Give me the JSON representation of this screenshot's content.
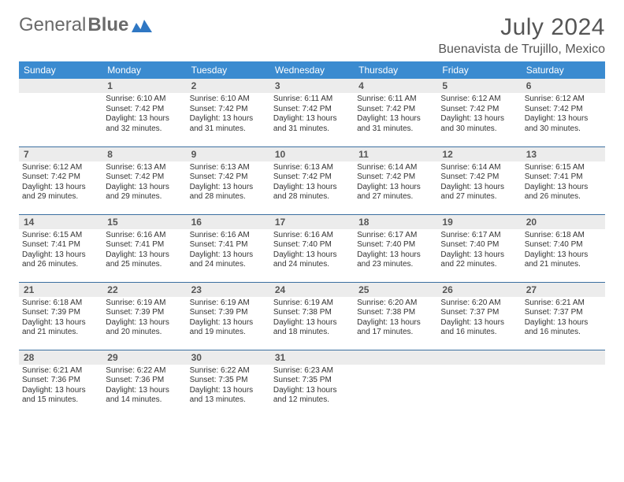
{
  "brand": {
    "word1": "General",
    "word2": "Blue"
  },
  "title": "July 2024",
  "location": "Buenavista de Trujillo, Mexico",
  "colors": {
    "header_bg": "#3b8bd0",
    "header_text": "#ffffff",
    "daynum_bg": "#ececec",
    "rule": "#3b6fa0",
    "text": "#333333",
    "title_text": "#555555",
    "logo_text": "#6a6a6a",
    "logo_mark": "#2f77c3"
  },
  "dow": [
    "Sunday",
    "Monday",
    "Tuesday",
    "Wednesday",
    "Thursday",
    "Friday",
    "Saturday"
  ],
  "weeks": [
    [
      null,
      {
        "n": "1",
        "sr": "6:10 AM",
        "ss": "7:42 PM",
        "dl": "13 hours and 32 minutes."
      },
      {
        "n": "2",
        "sr": "6:10 AM",
        "ss": "7:42 PM",
        "dl": "13 hours and 31 minutes."
      },
      {
        "n": "3",
        "sr": "6:11 AM",
        "ss": "7:42 PM",
        "dl": "13 hours and 31 minutes."
      },
      {
        "n": "4",
        "sr": "6:11 AM",
        "ss": "7:42 PM",
        "dl": "13 hours and 31 minutes."
      },
      {
        "n": "5",
        "sr": "6:12 AM",
        "ss": "7:42 PM",
        "dl": "13 hours and 30 minutes."
      },
      {
        "n": "6",
        "sr": "6:12 AM",
        "ss": "7:42 PM",
        "dl": "13 hours and 30 minutes."
      }
    ],
    [
      {
        "n": "7",
        "sr": "6:12 AM",
        "ss": "7:42 PM",
        "dl": "13 hours and 29 minutes."
      },
      {
        "n": "8",
        "sr": "6:13 AM",
        "ss": "7:42 PM",
        "dl": "13 hours and 29 minutes."
      },
      {
        "n": "9",
        "sr": "6:13 AM",
        "ss": "7:42 PM",
        "dl": "13 hours and 28 minutes."
      },
      {
        "n": "10",
        "sr": "6:13 AM",
        "ss": "7:42 PM",
        "dl": "13 hours and 28 minutes."
      },
      {
        "n": "11",
        "sr": "6:14 AM",
        "ss": "7:42 PM",
        "dl": "13 hours and 27 minutes."
      },
      {
        "n": "12",
        "sr": "6:14 AM",
        "ss": "7:42 PM",
        "dl": "13 hours and 27 minutes."
      },
      {
        "n": "13",
        "sr": "6:15 AM",
        "ss": "7:41 PM",
        "dl": "13 hours and 26 minutes."
      }
    ],
    [
      {
        "n": "14",
        "sr": "6:15 AM",
        "ss": "7:41 PM",
        "dl": "13 hours and 26 minutes."
      },
      {
        "n": "15",
        "sr": "6:16 AM",
        "ss": "7:41 PM",
        "dl": "13 hours and 25 minutes."
      },
      {
        "n": "16",
        "sr": "6:16 AM",
        "ss": "7:41 PM",
        "dl": "13 hours and 24 minutes."
      },
      {
        "n": "17",
        "sr": "6:16 AM",
        "ss": "7:40 PM",
        "dl": "13 hours and 24 minutes."
      },
      {
        "n": "18",
        "sr": "6:17 AM",
        "ss": "7:40 PM",
        "dl": "13 hours and 23 minutes."
      },
      {
        "n": "19",
        "sr": "6:17 AM",
        "ss": "7:40 PM",
        "dl": "13 hours and 22 minutes."
      },
      {
        "n": "20",
        "sr": "6:18 AM",
        "ss": "7:40 PM",
        "dl": "13 hours and 21 minutes."
      }
    ],
    [
      {
        "n": "21",
        "sr": "6:18 AM",
        "ss": "7:39 PM",
        "dl": "13 hours and 21 minutes."
      },
      {
        "n": "22",
        "sr": "6:19 AM",
        "ss": "7:39 PM",
        "dl": "13 hours and 20 minutes."
      },
      {
        "n": "23",
        "sr": "6:19 AM",
        "ss": "7:39 PM",
        "dl": "13 hours and 19 minutes."
      },
      {
        "n": "24",
        "sr": "6:19 AM",
        "ss": "7:38 PM",
        "dl": "13 hours and 18 minutes."
      },
      {
        "n": "25",
        "sr": "6:20 AM",
        "ss": "7:38 PM",
        "dl": "13 hours and 17 minutes."
      },
      {
        "n": "26",
        "sr": "6:20 AM",
        "ss": "7:37 PM",
        "dl": "13 hours and 16 minutes."
      },
      {
        "n": "27",
        "sr": "6:21 AM",
        "ss": "7:37 PM",
        "dl": "13 hours and 16 minutes."
      }
    ],
    [
      {
        "n": "28",
        "sr": "6:21 AM",
        "ss": "7:36 PM",
        "dl": "13 hours and 15 minutes."
      },
      {
        "n": "29",
        "sr": "6:22 AM",
        "ss": "7:36 PM",
        "dl": "13 hours and 14 minutes."
      },
      {
        "n": "30",
        "sr": "6:22 AM",
        "ss": "7:35 PM",
        "dl": "13 hours and 13 minutes."
      },
      {
        "n": "31",
        "sr": "6:23 AM",
        "ss": "7:35 PM",
        "dl": "13 hours and 12 minutes."
      },
      null,
      null,
      null
    ]
  ],
  "labels": {
    "sunrise": "Sunrise:",
    "sunset": "Sunset:",
    "daylight": "Daylight:"
  }
}
